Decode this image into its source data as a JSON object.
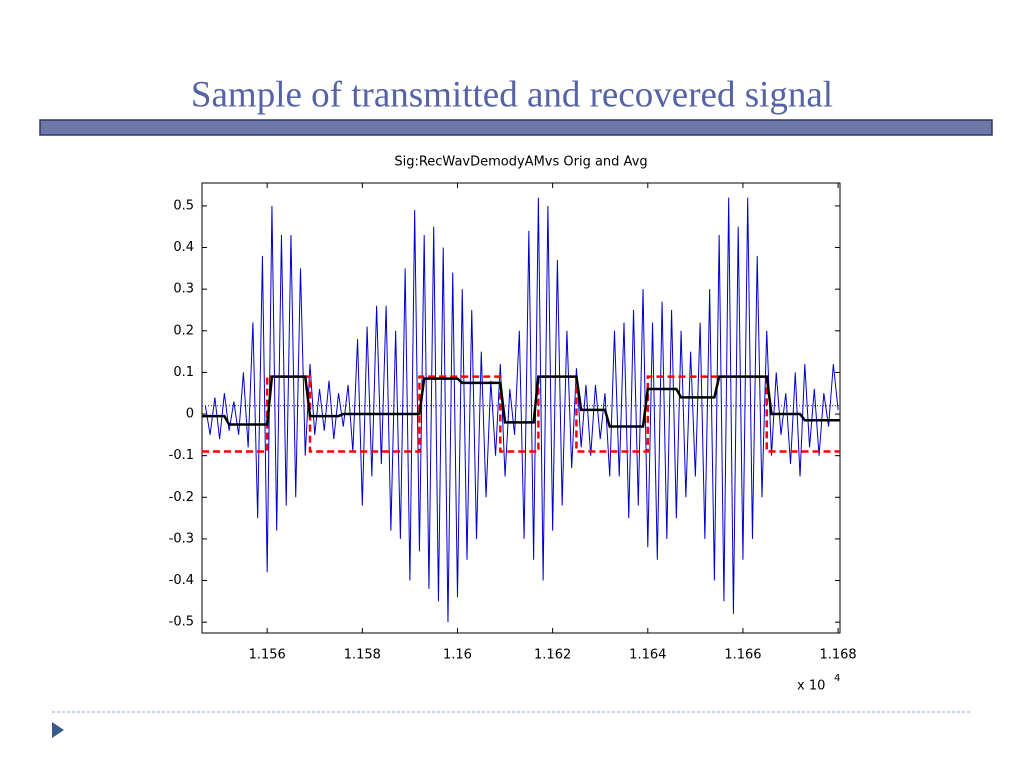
{
  "slide_title": "Sample of transmitted and recovered signal",
  "chart_data": {
    "type": "line",
    "title": "Sig:RecWavDemodyAMvs Orig and Avg",
    "x_multiplier": "x 10",
    "x_multiplier_exponent": "4",
    "xlim": [
      1.15463,
      1.16804
    ],
    "ylim": [
      -0.526,
      0.555
    ],
    "xticks": [
      1.156,
      1.158,
      1.16,
      1.162,
      1.164,
      1.166,
      1.168
    ],
    "yticks": [
      -0.5,
      -0.4,
      -0.3,
      -0.2,
      -0.1,
      0,
      0.1,
      0.2,
      0.3,
      0.4,
      0.5
    ],
    "series": [
      {
        "color": "#0000cc",
        "style": "solid",
        "width": 1,
        "x": [
          1.1547,
          1.1548,
          1.1549,
          1.155,
          1.1551,
          1.1552,
          1.1553,
          1.1554,
          1.1555,
          1.1556,
          1.1557,
          1.1558,
          1.1559,
          1.156,
          1.1561,
          1.1562,
          1.1563,
          1.1564,
          1.1565,
          1.1566,
          1.1567,
          1.1568,
          1.1569,
          1.157,
          1.1571,
          1.1572,
          1.1573,
          1.1574,
          1.1575,
          1.1576,
          1.1577,
          1.1578,
          1.1579,
          1.158,
          1.1581,
          1.1582,
          1.1583,
          1.1584,
          1.1585,
          1.1586,
          1.1587,
          1.1588,
          1.1589,
          1.159,
          1.1591,
          1.1592,
          1.1593,
          1.1594,
          1.1595,
          1.1596,
          1.1597,
          1.1598,
          1.1599,
          1.16,
          1.1601,
          1.1602,
          1.1603,
          1.1604,
          1.1605,
          1.1606,
          1.1607,
          1.1608,
          1.1609,
          1.161,
          1.1611,
          1.1612,
          1.1613,
          1.1614,
          1.1615,
          1.1616,
          1.1617,
          1.1618,
          1.1619,
          1.162,
          1.1621,
          1.1622,
          1.1623,
          1.1624,
          1.1625,
          1.1626,
          1.1627,
          1.1628,
          1.1629,
          1.163,
          1.1631,
          1.1632,
          1.1633,
          1.1634,
          1.1635,
          1.1636,
          1.1637,
          1.1638,
          1.1639,
          1.164,
          1.1641,
          1.1642,
          1.1643,
          1.1644,
          1.1645,
          1.1646,
          1.1647,
          1.1648,
          1.1649,
          1.165,
          1.1651,
          1.1652,
          1.1653,
          1.1654,
          1.1655,
          1.1656,
          1.1657,
          1.1658,
          1.1659,
          1.166,
          1.1661,
          1.1662,
          1.1663,
          1.1664,
          1.1665,
          1.1666,
          1.1667,
          1.1668,
          1.1669,
          1.167,
          1.1671,
          1.1672,
          1.1673,
          1.1674,
          1.1675,
          1.1676,
          1.1677,
          1.1678,
          1.1679,
          1.168
        ],
        "values": [
          0.02,
          -0.05,
          0.04,
          -0.06,
          0.05,
          -0.04,
          0.03,
          -0.05,
          0.1,
          -0.08,
          0.22,
          -0.25,
          0.38,
          -0.38,
          0.5,
          -0.28,
          0.43,
          -0.22,
          0.43,
          -0.2,
          0.35,
          -0.1,
          0.12,
          -0.05,
          0.06,
          -0.04,
          0.08,
          -0.06,
          0.05,
          -0.03,
          0.07,
          -0.09,
          0.18,
          -0.22,
          0.21,
          -0.15,
          0.26,
          -0.12,
          0.26,
          -0.28,
          0.2,
          -0.3,
          0.35,
          -0.4,
          0.49,
          -0.33,
          0.43,
          -0.42,
          0.45,
          -0.45,
          0.4,
          -0.5,
          0.34,
          -0.44,
          0.3,
          -0.35,
          0.25,
          -0.3,
          0.15,
          -0.2,
          0.08,
          -0.1,
          0.12,
          -0.15,
          0.06,
          -0.05,
          0.2,
          -0.3,
          0.44,
          -0.35,
          0.52,
          -0.4,
          0.5,
          -0.28,
          0.37,
          -0.22,
          0.2,
          -0.13,
          0.11,
          -0.08,
          0.07,
          -0.1,
          0.07,
          -0.06,
          0.05,
          -0.15,
          0.2,
          -0.15,
          0.22,
          -0.25,
          0.25,
          -0.22,
          0.3,
          -0.32,
          0.22,
          -0.35,
          0.27,
          -0.3,
          0.25,
          -0.25,
          0.2,
          -0.2,
          0.15,
          -0.15,
          0.22,
          -0.3,
          0.3,
          -0.4,
          0.43,
          -0.45,
          0.52,
          -0.48,
          0.45,
          -0.35,
          0.52,
          -0.3,
          0.38,
          -0.2,
          0.2,
          -0.1,
          0.1,
          -0.05,
          0.05,
          -0.12,
          0.1,
          -0.15,
          0.12,
          -0.08,
          0.06,
          -0.1,
          0.05,
          -0.03,
          0.12,
          0.01
        ]
      },
      {
        "color": "#0000cc",
        "style": "dotted",
        "width": 1,
        "x": [
          1.15463,
          1.16804
        ],
        "values": [
          0.02,
          0.02
        ]
      },
      {
        "color": "#ff0000",
        "style": "dashed",
        "width": 2.5,
        "x": [
          1.15463,
          1.156,
          1.156,
          1.1569,
          1.1569,
          1.1592,
          1.1592,
          1.1609,
          1.1609,
          1.1617,
          1.1617,
          1.1625,
          1.1625,
          1.164,
          1.164,
          1.1665,
          1.1665,
          1.16804
        ],
        "values": [
          -0.09,
          -0.09,
          0.09,
          0.09,
          -0.09,
          -0.09,
          0.09,
          0.09,
          -0.09,
          -0.09,
          0.09,
          0.09,
          -0.09,
          -0.09,
          0.09,
          0.09,
          -0.09,
          -0.09
        ]
      },
      {
        "color": "#000000",
        "style": "solid",
        "width": 2.5,
        "x": [
          1.15463,
          1.1551,
          1.1552,
          1.156,
          1.1561,
          1.1568,
          1.1569,
          1.1575,
          1.1576,
          1.1592,
          1.1593,
          1.16,
          1.1601,
          1.1609,
          1.161,
          1.1616,
          1.1617,
          1.1625,
          1.1626,
          1.1631,
          1.1632,
          1.1639,
          1.164,
          1.1646,
          1.1647,
          1.1654,
          1.1655,
          1.1665,
          1.1666,
          1.1672,
          1.1673,
          1.16804
        ],
        "values": [
          -0.005,
          -0.005,
          -0.025,
          -0.025,
          0.09,
          0.09,
          -0.005,
          -0.005,
          0,
          0,
          0.085,
          0.085,
          0.075,
          0.075,
          -0.02,
          -0.02,
          0.09,
          0.09,
          0.01,
          0.01,
          -0.03,
          -0.03,
          0.06,
          0.06,
          0.04,
          0.04,
          0.09,
          0.09,
          0,
          0,
          -0.015,
          -0.015
        ]
      }
    ]
  }
}
